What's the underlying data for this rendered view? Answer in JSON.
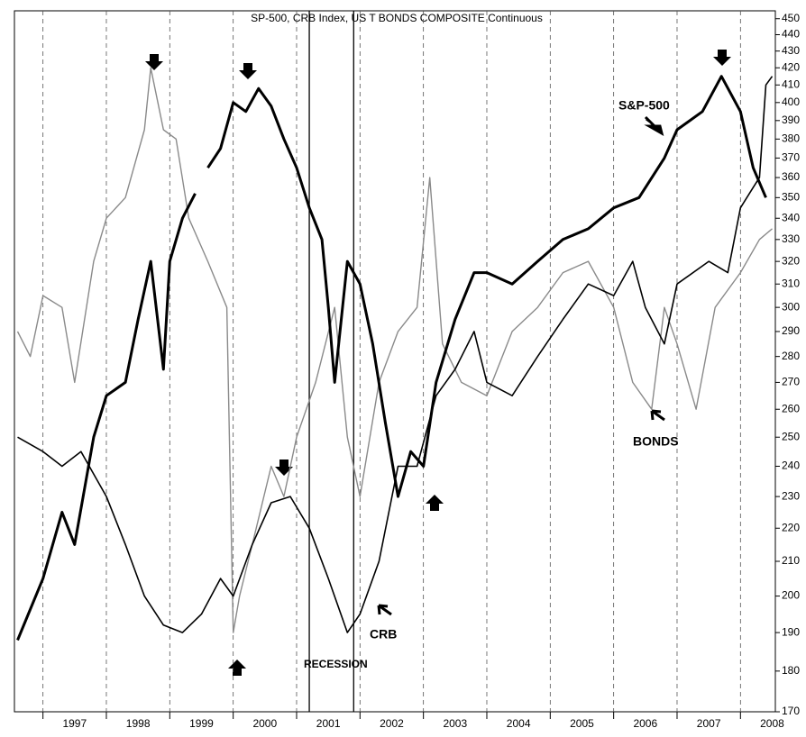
{
  "chart_data": {
    "type": "line",
    "title": "SP-500, CRB Index, US T BONDS COMPOSITE Continuous",
    "annotations": [
      "S&P-500",
      "BONDS",
      "CRB",
      "RECESSION"
    ],
    "xlim": [
      1996.55,
      2008.55
    ],
    "xticks": [
      {
        "value": 1997,
        "label": "1997"
      },
      {
        "value": 1998,
        "label": "1998"
      },
      {
        "value": 1999,
        "label": "1999"
      },
      {
        "value": 2000,
        "label": "2000"
      },
      {
        "value": 2001,
        "label": "2001"
      },
      {
        "value": 2002,
        "label": "2002"
      },
      {
        "value": 2003,
        "label": "2003"
      },
      {
        "value": 2004,
        "label": "2004"
      },
      {
        "value": 2005,
        "label": "2005"
      },
      {
        "value": 2006,
        "label": "2006"
      },
      {
        "value": 2007,
        "label": "2007"
      },
      {
        "value": 2008,
        "label": "2008"
      }
    ],
    "recession": [
      2001.2,
      2001.9
    ],
    "ylim": [
      170,
      455
    ],
    "log_y": true,
    "yticks": [
      170,
      180,
      190,
      200,
      210,
      220,
      230,
      240,
      250,
      260,
      270,
      280,
      290,
      300,
      310,
      320,
      330,
      340,
      350,
      360,
      370,
      380,
      390,
      400,
      410,
      420,
      430,
      440,
      450
    ],
    "grid": true,
    "series": [
      {
        "name": "S&P-500",
        "color": "#000000",
        "width": 3,
        "x": [
          1996.6,
          1997.0,
          1997.3,
          1997.5,
          1997.8,
          1998.0,
          1998.3,
          1998.5,
          1998.7,
          1998.9,
          1999.0,
          1999.2,
          1999.4,
          1999.5,
          1999.6,
          1999.8,
          2000.0,
          2000.2,
          2000.4,
          2000.6,
          2000.8,
          2001.0,
          2001.2,
          2001.4,
          2001.5,
          2001.6,
          2001.8,
          2002.0,
          2002.2,
          2002.4,
          2002.6,
          2002.8,
          2003.0,
          2003.2,
          2003.5,
          2003.8,
          2004.0,
          2004.4,
          2004.8,
          2005.2,
          2005.6,
          2006.0,
          2006.4,
          2006.8,
          2007.0,
          2007.4,
          2007.7,
          2008.0,
          2008.2,
          2008.4
        ],
        "values": [
          188,
          205,
          225,
          215,
          250,
          265,
          270,
          295,
          320,
          275,
          320,
          340,
          352,
          null,
          365,
          375,
          400,
          395,
          408,
          398,
          380,
          365,
          345,
          330,
          300,
          270,
          320,
          310,
          285,
          255,
          230,
          245,
          240,
          270,
          295,
          315,
          315,
          310,
          320,
          330,
          335,
          345,
          350,
          370,
          385,
          395,
          415,
          395,
          365,
          350
        ]
      },
      {
        "name": "BONDS",
        "color": "#000000",
        "width": 1.6,
        "x": [
          1996.6,
          1997.0,
          1997.3,
          1997.6,
          1998.0,
          1998.3,
          1998.6,
          1998.9,
          1999.2,
          1999.5,
          1999.8,
          2000.0,
          2000.3,
          2000.6,
          2000.9,
          2001.2,
          2001.5,
          2001.8,
          2002.0,
          2002.3,
          2002.6,
          2002.9,
          2003.2,
          2003.5,
          2003.8,
          2004.0,
          2004.4,
          2004.8,
          2005.2,
          2005.6,
          2006.0,
          2006.3,
          2006.5,
          2006.8,
          2007.0,
          2007.5,
          2007.8,
          2008.0,
          2008.2,
          2008.3,
          2008.4,
          2008.5
        ],
        "values": [
          250,
          245,
          240,
          245,
          230,
          215,
          200,
          192,
          190,
          195,
          205,
          200,
          215,
          228,
          230,
          220,
          205,
          190,
          195,
          210,
          240,
          240,
          265,
          275,
          290,
          270,
          265,
          280,
          295,
          310,
          305,
          320,
          300,
          285,
          310,
          320,
          315,
          345,
          355,
          360,
          410,
          415
        ]
      },
      {
        "name": "CRB",
        "color": "#8a8a8a",
        "width": 1.4,
        "x": [
          1996.6,
          1996.8,
          1997.0,
          1997.3,
          1997.5,
          1997.8,
          1998.0,
          1998.3,
          1998.6,
          1998.7,
          1998.9,
          1999.1,
          1999.3,
          1999.6,
          1999.9,
          2000.0,
          2000.1,
          2000.3,
          2000.6,
          2000.8,
          2001.0,
          2001.3,
          2001.6,
          2001.8,
          2002.0,
          2002.3,
          2002.6,
          2002.9,
          2003.1,
          2003.3,
          2003.6,
          2004.0,
          2004.4,
          2004.8,
          2005.2,
          2005.6,
          2006.0,
          2006.3,
          2006.6,
          2006.8,
          2007.0,
          2007.3,
          2007.6,
          2008.0,
          2008.3,
          2008.5
        ],
        "values": [
          290,
          280,
          305,
          300,
          270,
          320,
          340,
          350,
          385,
          420,
          385,
          380,
          340,
          320,
          300,
          190,
          200,
          215,
          240,
          230,
          250,
          270,
          300,
          250,
          230,
          270,
          290,
          300,
          360,
          285,
          270,
          265,
          290,
          300,
          315,
          320,
          300,
          270,
          260,
          300,
          285,
          260,
          300,
          315,
          330,
          335
        ]
      }
    ]
  }
}
